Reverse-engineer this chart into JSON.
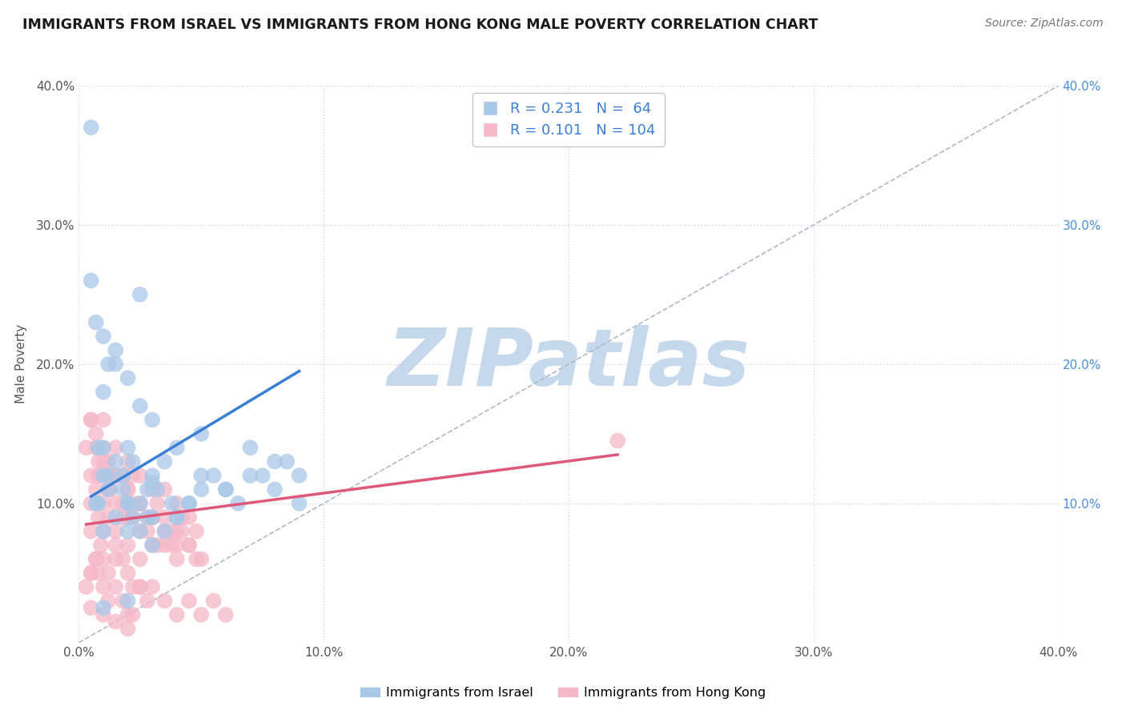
{
  "title": "IMMIGRANTS FROM ISRAEL VS IMMIGRANTS FROM HONG KONG MALE POVERTY CORRELATION CHART",
  "source": "Source: ZipAtlas.com",
  "ylabel": "Male Poverty",
  "xlim": [
    0.0,
    0.4
  ],
  "ylim": [
    0.0,
    0.4
  ],
  "xticks": [
    0.0,
    0.1,
    0.2,
    0.3,
    0.4
  ],
  "yticks": [
    0.1,
    0.2,
    0.3,
    0.4
  ],
  "xtick_labels": [
    "0.0%",
    "10.0%",
    "20.0%",
    "30.0%",
    "40.0%"
  ],
  "ytick_labels": [
    "10.0%",
    "20.0%",
    "30.0%",
    "40.0%"
  ],
  "right_ytick_labels": [
    "10.0%",
    "20.0%",
    "30.0%",
    "40.0%"
  ],
  "right_ytick_positions": [
    0.1,
    0.2,
    0.3,
    0.4
  ],
  "israel_color": "#a8c8e8",
  "hongkong_color": "#f5b8c8",
  "israel_line_color": "#3a7fd5",
  "hongkong_line_color": "#e05878",
  "diag_color": "#b0b8c8",
  "israel_R": 0.231,
  "israel_N": 64,
  "hongkong_R": 0.101,
  "hongkong_N": 104,
  "legend_label_israel": "Immigrants from Israel",
  "legend_label_hongkong": "Immigrants from Hong Kong",
  "watermark": "ZIPatlas",
  "watermark_color": "#c5d8ec",
  "grid_color": "#d0d8e0",
  "background_color": "#ffffff",
  "israel_x": [
    0.005,
    0.007,
    0.008,
    0.01,
    0.01,
    0.01,
    0.01,
    0.012,
    0.012,
    0.015,
    0.015,
    0.015,
    0.018,
    0.02,
    0.02,
    0.02,
    0.02,
    0.022,
    0.025,
    0.025,
    0.028,
    0.03,
    0.03,
    0.03,
    0.032,
    0.035,
    0.038,
    0.04,
    0.04,
    0.045,
    0.05,
    0.05,
    0.055,
    0.06,
    0.065,
    0.07,
    0.075,
    0.08,
    0.085,
    0.09,
    0.005,
    0.007,
    0.008,
    0.01,
    0.012,
    0.015,
    0.018,
    0.02,
    0.022,
    0.025,
    0.028,
    0.03,
    0.035,
    0.04,
    0.045,
    0.05,
    0.06,
    0.07,
    0.08,
    0.09,
    0.01,
    0.02,
    0.025,
    0.03
  ],
  "israel_y": [
    0.37,
    0.1,
    0.14,
    0.12,
    0.14,
    0.18,
    0.22,
    0.11,
    0.2,
    0.13,
    0.2,
    0.21,
    0.12,
    0.08,
    0.1,
    0.14,
    0.19,
    0.13,
    0.1,
    0.17,
    0.11,
    0.09,
    0.12,
    0.16,
    0.11,
    0.13,
    0.1,
    0.09,
    0.14,
    0.1,
    0.11,
    0.15,
    0.12,
    0.11,
    0.1,
    0.14,
    0.12,
    0.11,
    0.13,
    0.12,
    0.26,
    0.23,
    0.1,
    0.08,
    0.12,
    0.09,
    0.11,
    0.1,
    0.09,
    0.08,
    0.09,
    0.07,
    0.08,
    0.09,
    0.1,
    0.12,
    0.11,
    0.12,
    0.13,
    0.1,
    0.025,
    0.03,
    0.25,
    0.115
  ],
  "hongkong_x": [
    0.003,
    0.005,
    0.005,
    0.005,
    0.005,
    0.007,
    0.007,
    0.008,
    0.008,
    0.01,
    0.01,
    0.01,
    0.01,
    0.01,
    0.012,
    0.012,
    0.013,
    0.015,
    0.015,
    0.015,
    0.015,
    0.015,
    0.018,
    0.018,
    0.02,
    0.02,
    0.02,
    0.02,
    0.022,
    0.022,
    0.025,
    0.025,
    0.025,
    0.025,
    0.028,
    0.03,
    0.03,
    0.03,
    0.032,
    0.035,
    0.035,
    0.035,
    0.038,
    0.04,
    0.04,
    0.04,
    0.042,
    0.045,
    0.045,
    0.048,
    0.005,
    0.007,
    0.008,
    0.01,
    0.012,
    0.015,
    0.018,
    0.02,
    0.022,
    0.025,
    0.028,
    0.03,
    0.032,
    0.035,
    0.038,
    0.04,
    0.042,
    0.045,
    0.048,
    0.05,
    0.005,
    0.007,
    0.009,
    0.01,
    0.012,
    0.015,
    0.018,
    0.02,
    0.022,
    0.025,
    0.003,
    0.005,
    0.007,
    0.008,
    0.01,
    0.012,
    0.015,
    0.018,
    0.02,
    0.022,
    0.025,
    0.028,
    0.03,
    0.035,
    0.04,
    0.045,
    0.05,
    0.055,
    0.06,
    0.22,
    0.005,
    0.01,
    0.015,
    0.02
  ],
  "hongkong_y": [
    0.14,
    0.16,
    0.12,
    0.1,
    0.08,
    0.15,
    0.11,
    0.13,
    0.09,
    0.16,
    0.14,
    0.12,
    0.1,
    0.08,
    0.13,
    0.09,
    0.11,
    0.14,
    0.12,
    0.1,
    0.08,
    0.06,
    0.12,
    0.09,
    0.13,
    0.11,
    0.09,
    0.07,
    0.12,
    0.1,
    0.12,
    0.1,
    0.08,
    0.06,
    0.09,
    0.11,
    0.09,
    0.07,
    0.1,
    0.11,
    0.09,
    0.07,
    0.08,
    0.1,
    0.08,
    0.06,
    0.09,
    0.09,
    0.07,
    0.08,
    0.16,
    0.14,
    0.12,
    0.13,
    0.11,
    0.12,
    0.1,
    0.11,
    0.09,
    0.1,
    0.08,
    0.09,
    0.07,
    0.08,
    0.07,
    0.07,
    0.08,
    0.07,
    0.06,
    0.06,
    0.05,
    0.06,
    0.07,
    0.06,
    0.05,
    0.07,
    0.06,
    0.05,
    0.04,
    0.04,
    0.04,
    0.05,
    0.06,
    0.05,
    0.04,
    0.03,
    0.04,
    0.03,
    0.02,
    0.02,
    0.04,
    0.03,
    0.04,
    0.03,
    0.02,
    0.03,
    0.02,
    0.03,
    0.02,
    0.145,
    0.025,
    0.02,
    0.015,
    0.01
  ],
  "israel_trend_x": [
    0.005,
    0.09
  ],
  "israel_trend_y": [
    0.105,
    0.195
  ],
  "hongkong_trend_x": [
    0.003,
    0.22
  ],
  "hongkong_trend_y": [
    0.085,
    0.135
  ]
}
